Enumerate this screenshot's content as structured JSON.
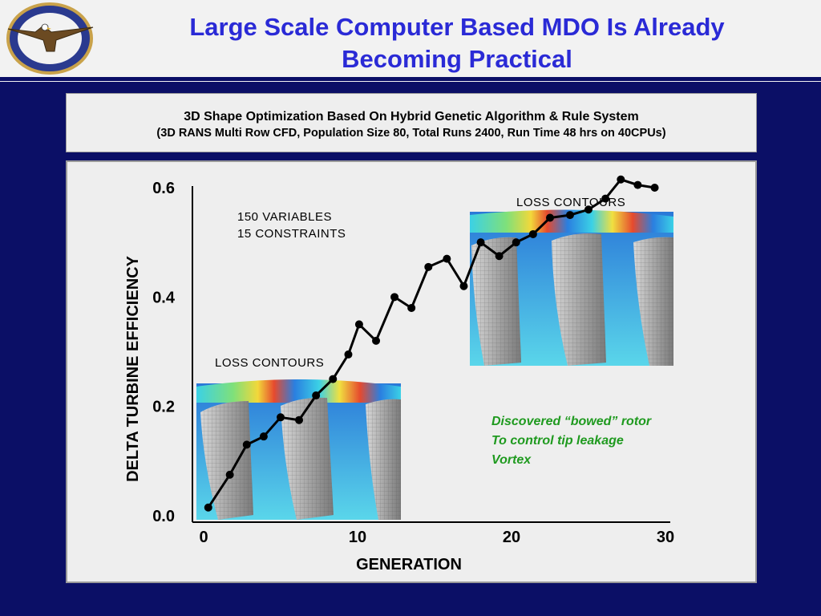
{
  "title_line1": "Large Scale Computer Based MDO Is Already",
  "title_line2": "Becoming Practical",
  "logo_text": "PRATT & WHITNEY DEPENDABLE ENGINES",
  "subtitle_line1": "3D Shape Optimization Based On Hybrid Genetic Algorithm & Rule System",
  "subtitle_line2": "(3D RANS Multi Row CFD,  Population Size 80, Total Runs 2400, Run Time 48 hrs on 40CPUs)",
  "annotations": {
    "variables": "150  VARIABLES",
    "constraints": "15   CONSTRAINTS",
    "loss_contours_left": "LOSS CONTOURS",
    "loss_contours_right": "LOSS CONTOURS",
    "note_line1": "Discovered “bowed” rotor",
    "note_line2": "To control tip leakage",
    "note_line3": "Vortex"
  },
  "colors": {
    "background": "#0b0f66",
    "title": "#2a2ad6",
    "note": "#1f9a1f",
    "series": "#000000"
  },
  "chart_data": {
    "type": "line",
    "xlabel": "GENERATION",
    "ylabel": "DELTA TURBINE EFFICIENCY",
    "xlim": [
      0,
      30
    ],
    "ylim": [
      0.0,
      0.6
    ],
    "xticks": [
      "0",
      "10",
      "20",
      "30"
    ],
    "yticks": [
      "0.0",
      "0.2",
      "0.4",
      "0.6"
    ],
    "grid": false,
    "series": [
      {
        "x": [
          0.3,
          1.7,
          2.8,
          3.9,
          5.0,
          6.2,
          7.3,
          8.4,
          9.4,
          10.1,
          11.2,
          12.4,
          13.5,
          14.6,
          15.8,
          16.9,
          18.0,
          19.2,
          20.3,
          21.4,
          22.5,
          23.8,
          25.0,
          26.1,
          27.1,
          28.2,
          29.3
        ],
        "y": [
          0.015,
          0.075,
          0.13,
          0.145,
          0.18,
          0.175,
          0.22,
          0.25,
          0.295,
          0.35,
          0.32,
          0.4,
          0.38,
          0.455,
          0.47,
          0.42,
          0.5,
          0.475,
          0.5,
          0.515,
          0.545,
          0.55,
          0.56,
          0.58,
          0.615,
          0.605,
          0.6
        ]
      }
    ]
  }
}
